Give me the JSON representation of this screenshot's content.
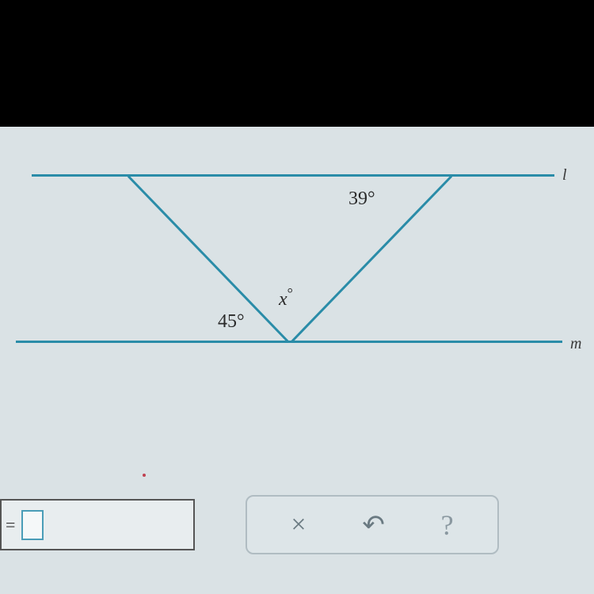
{
  "diagram": {
    "type": "geometric-figure",
    "line_color": "#2a8ca8",
    "line_width": 3,
    "background_color": "#dae2e5",
    "labels": {
      "line_l": "l",
      "line_m": "m",
      "angle_39": "39°",
      "angle_x": "x",
      "angle_x_degree": "°",
      "angle_45": "45°"
    },
    "label_fontsize": 24,
    "label_color": "#2a2a2a"
  },
  "input": {
    "equals": "=",
    "value": ""
  },
  "buttons": {
    "clear_icon": "×",
    "undo_icon": "↶",
    "help_icon": "?"
  }
}
